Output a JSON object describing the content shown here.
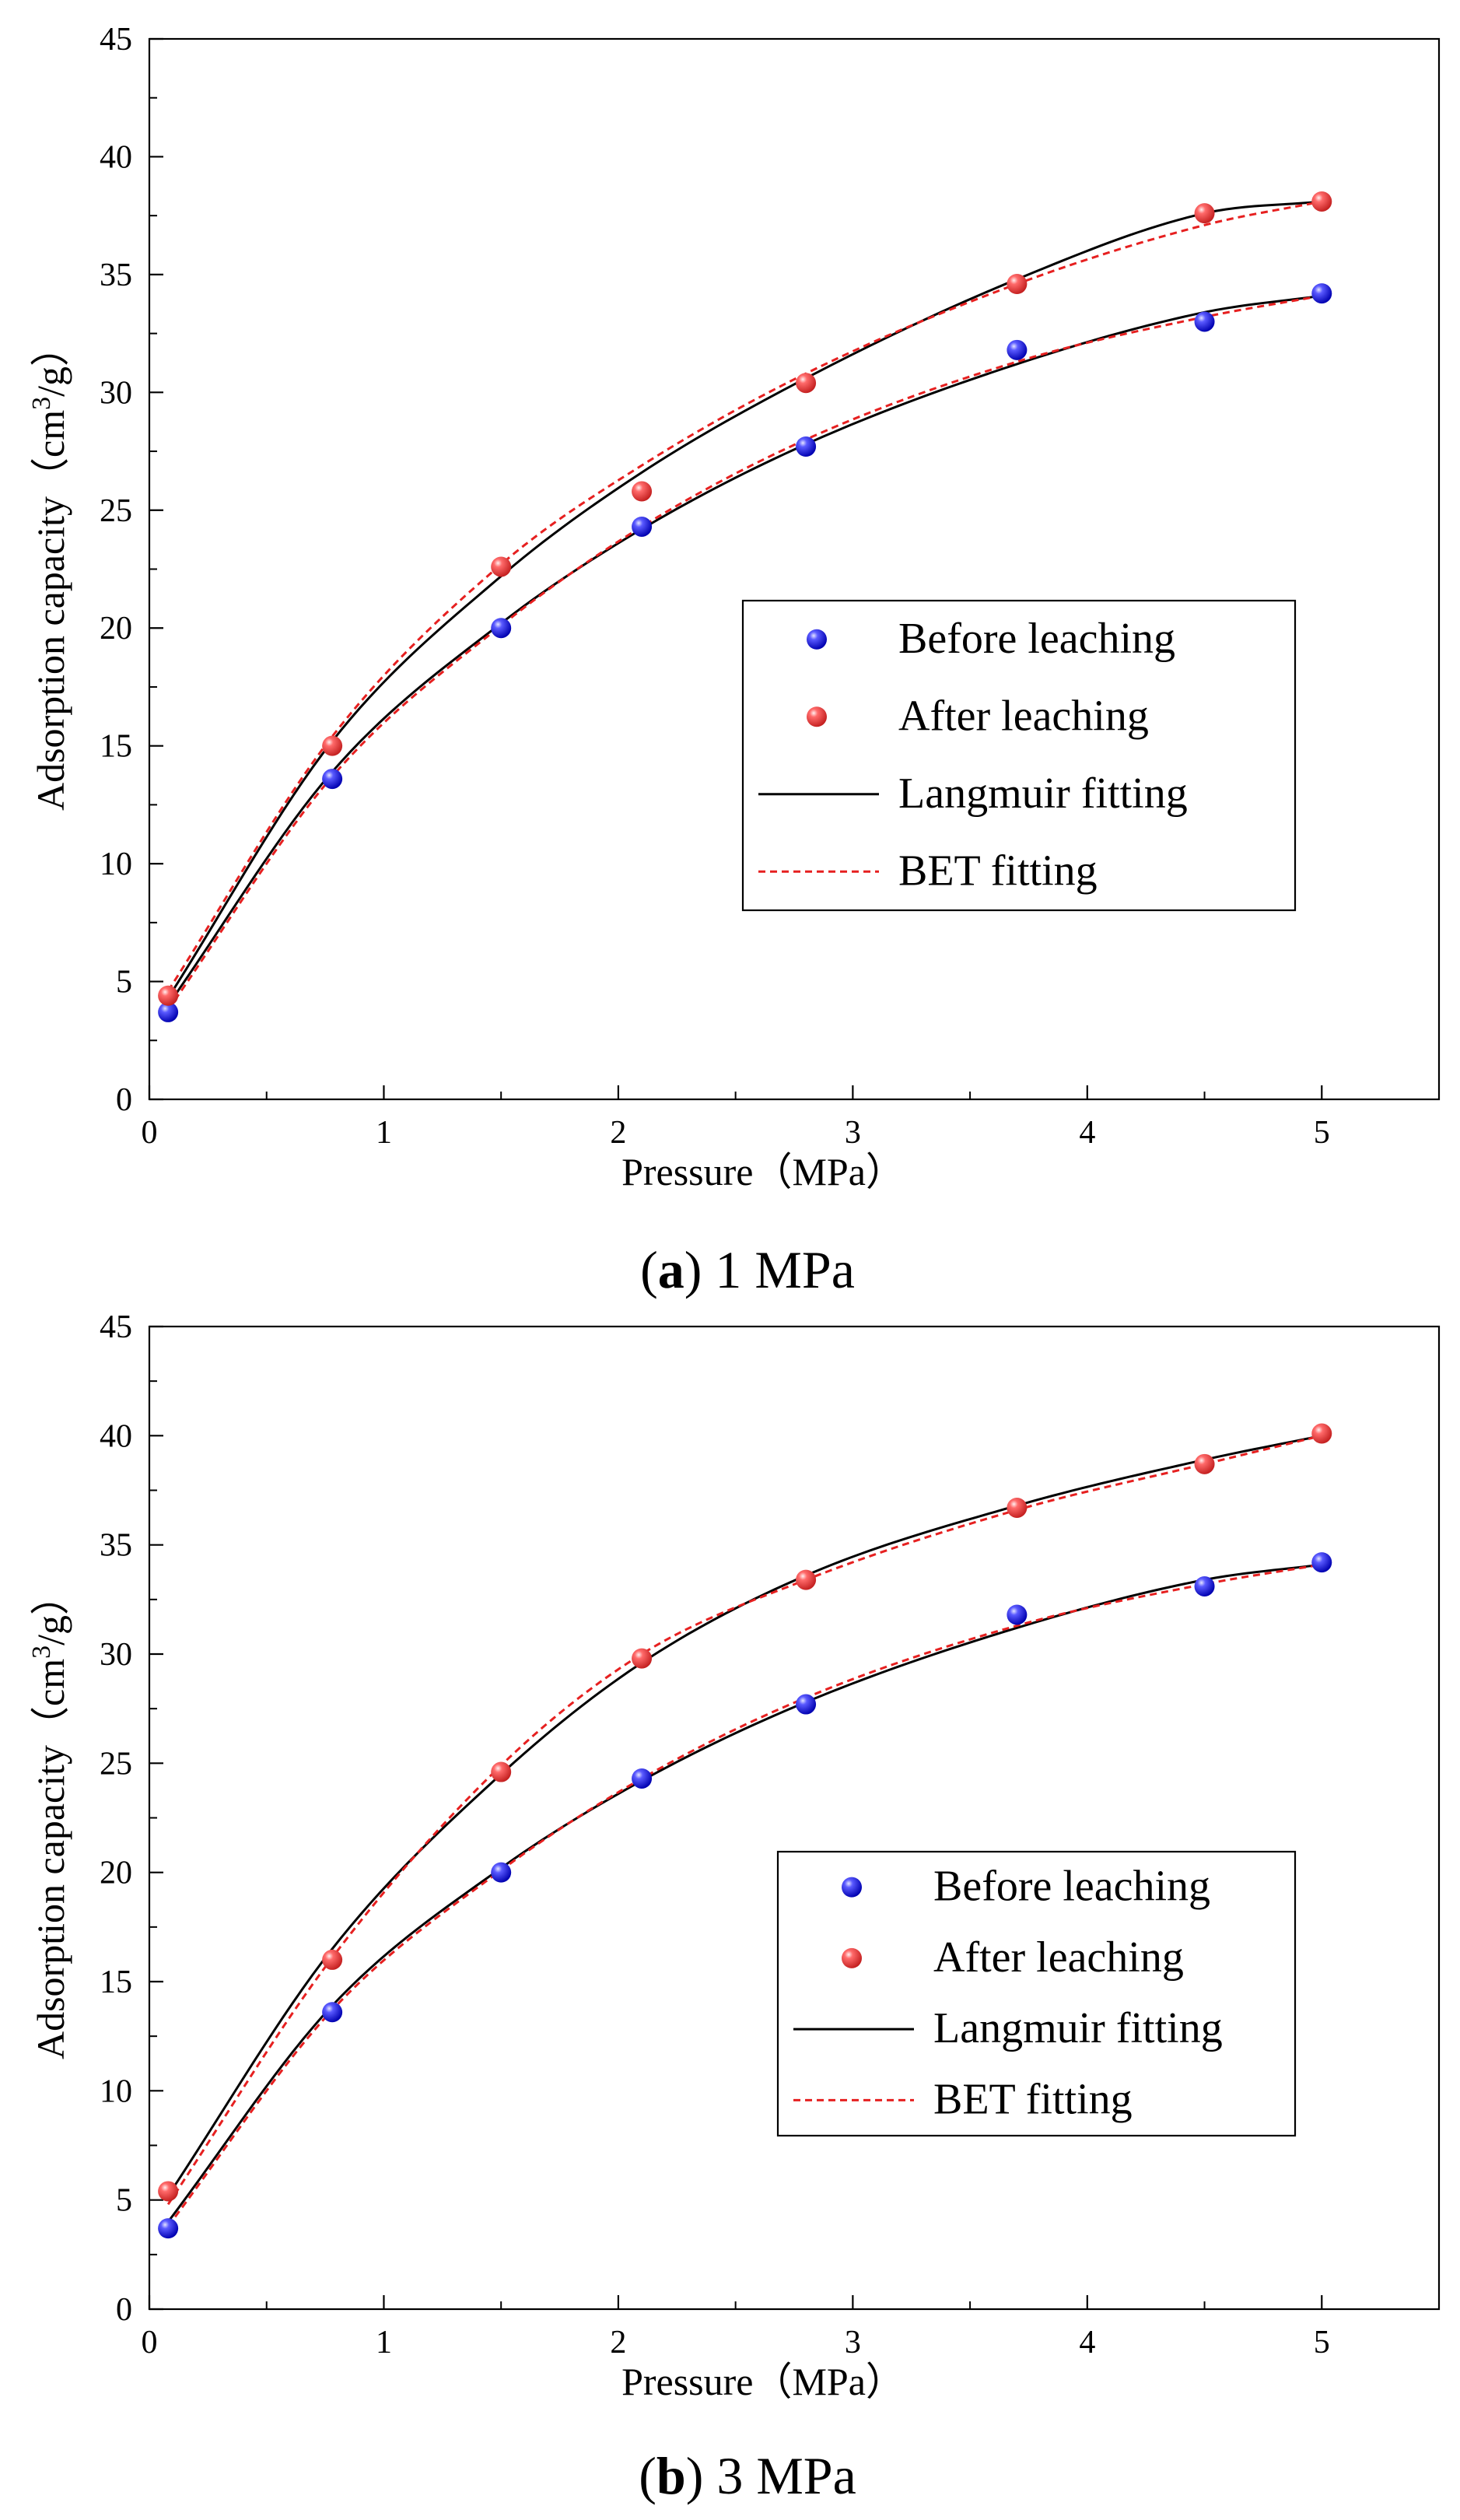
{
  "chart_data": [
    {
      "type": "scatter",
      "caption_letter": "a",
      "caption_text": " 1 MPa",
      "xlabel": "Pressure（MPa）",
      "ylabel_prefix": "Adsorption capacity（cm",
      "ylabel_sup": "3",
      "ylabel_suffix": "/g）",
      "xlim": [
        0,
        5.5
      ],
      "ylim": [
        0,
        45
      ],
      "xticks": [
        0,
        1,
        2,
        3,
        4,
        5
      ],
      "xtick_labels": [
        "0",
        "1",
        "2",
        "3",
        "4",
        "5"
      ],
      "yticks": [
        0,
        5,
        10,
        15,
        20,
        25,
        30,
        35,
        40,
        45
      ],
      "ytick_labels": [
        "0",
        "5",
        "10",
        "15",
        "20",
        "25",
        "30",
        "35",
        "40",
        "45"
      ],
      "legend_position": "center-right",
      "series": [
        {
          "name": "Before leaching",
          "kind": "points",
          "color": "#1a1aee",
          "x": [
            0.08,
            0.78,
            1.5,
            2.1,
            2.8,
            3.7,
            4.5,
            5.0
          ],
          "y": [
            3.7,
            13.6,
            20.0,
            24.3,
            27.7,
            31.8,
            33.0,
            34.2
          ]
        },
        {
          "name": "After leaching",
          "kind": "points",
          "color": "#f04848",
          "x": [
            0.08,
            0.78,
            1.5,
            2.1,
            2.8,
            3.7,
            4.5,
            5.0
          ],
          "y": [
            4.4,
            15.0,
            22.6,
            25.8,
            30.4,
            34.6,
            37.6,
            38.1
          ]
        },
        {
          "name": "Langmuir fitting",
          "kind": "line",
          "color": "#000000",
          "legend": true,
          "x": [
            0.08,
            0.78,
            1.5,
            2.1,
            2.8,
            3.7,
            4.5,
            5.0
          ],
          "y": [
            4.3,
            15.2,
            22.2,
            26.6,
            30.6,
            34.8,
            37.6,
            38.1
          ]
        },
        {
          "name": "BET fitting",
          "kind": "dashed",
          "color": "#e62020",
          "legend": true,
          "x": [
            0.08,
            0.78,
            1.5,
            2.1,
            2.8,
            3.7,
            4.5,
            5.0
          ],
          "y": [
            4.6,
            15.4,
            22.7,
            26.9,
            30.8,
            34.6,
            37.1,
            38.1
          ]
        },
        {
          "name": "Langmuir fitting",
          "kind": "line",
          "color": "#000000",
          "legend": false,
          "x": [
            0.08,
            0.78,
            1.5,
            2.1,
            2.8,
            3.7,
            4.5,
            5.0
          ],
          "y": [
            4.0,
            13.9,
            20.2,
            24.2,
            27.8,
            31.2,
            33.4,
            34.1
          ]
        },
        {
          "name": "BET fitting",
          "kind": "dashed",
          "color": "#e62020",
          "legend": false,
          "x": [
            0.08,
            0.78,
            1.5,
            2.1,
            2.8,
            3.7,
            4.5,
            5.0
          ],
          "y": [
            3.8,
            13.7,
            20.1,
            24.3,
            28.0,
            31.3,
            33.2,
            34.1
          ]
        }
      ]
    },
    {
      "type": "scatter",
      "caption_letter": "b",
      "caption_text": " 3 MPa",
      "xlabel": "Pressure（MPa）",
      "ylabel_prefix": "Adsorption capacity（cm",
      "ylabel_sup": "3",
      "ylabel_suffix": "/g）",
      "xlim": [
        0,
        5.5
      ],
      "ylim": [
        0,
        45
      ],
      "xticks": [
        0,
        1,
        2,
        3,
        4,
        5
      ],
      "xtick_labels": [
        "0",
        "1",
        "2",
        "3",
        "4",
        "5"
      ],
      "yticks": [
        0,
        5,
        10,
        15,
        20,
        25,
        30,
        35,
        40,
        45
      ],
      "ytick_labels": [
        "0",
        "5",
        "10",
        "15",
        "20",
        "25",
        "30",
        "35",
        "40",
        "45"
      ],
      "legend_position": "lower-right",
      "series": [
        {
          "name": "Before leaching",
          "kind": "points",
          "color": "#1a1aee",
          "x": [
            0.08,
            0.78,
            1.5,
            2.1,
            2.8,
            3.7,
            4.5,
            5.0
          ],
          "y": [
            3.7,
            13.6,
            20.0,
            24.3,
            27.7,
            31.8,
            33.1,
            34.2
          ]
        },
        {
          "name": "After leaching",
          "kind": "points",
          "color": "#f04848",
          "x": [
            0.08,
            0.78,
            1.5,
            2.1,
            2.8,
            3.7,
            4.5,
            5.0
          ],
          "y": [
            5.4,
            16.0,
            24.6,
            29.8,
            33.4,
            36.7,
            38.7,
            40.1
          ]
        },
        {
          "name": "Langmuir fitting",
          "kind": "line",
          "color": "#000000",
          "legend": true,
          "x": [
            0.08,
            0.78,
            1.5,
            2.1,
            2.8,
            3.7,
            4.5,
            5.0
          ],
          "y": [
            5.2,
            16.5,
            24.5,
            29.6,
            33.6,
            36.8,
            38.9,
            40.0
          ]
        },
        {
          "name": "BET fitting",
          "kind": "dashed",
          "color": "#e62020",
          "legend": true,
          "x": [
            0.08,
            0.78,
            1.5,
            2.1,
            2.8,
            3.7,
            4.5,
            5.0
          ],
          "y": [
            4.8,
            16.1,
            24.9,
            30.0,
            33.4,
            36.6,
            38.7,
            40.0
          ]
        },
        {
          "name": "Langmuir fitting",
          "kind": "line",
          "color": "#000000",
          "legend": false,
          "x": [
            0.08,
            0.78,
            1.5,
            2.1,
            2.8,
            3.7,
            4.5,
            5.0
          ],
          "y": [
            4.0,
            13.9,
            20.2,
            24.2,
            27.8,
            31.2,
            33.4,
            34.1
          ]
        },
        {
          "name": "BET fitting",
          "kind": "dashed",
          "color": "#e62020",
          "legend": false,
          "x": [
            0.08,
            0.78,
            1.5,
            2.1,
            2.8,
            3.7,
            4.5,
            5.0
          ],
          "y": [
            3.8,
            13.7,
            20.1,
            24.3,
            28.0,
            31.3,
            33.2,
            34.1
          ]
        }
      ]
    }
  ]
}
